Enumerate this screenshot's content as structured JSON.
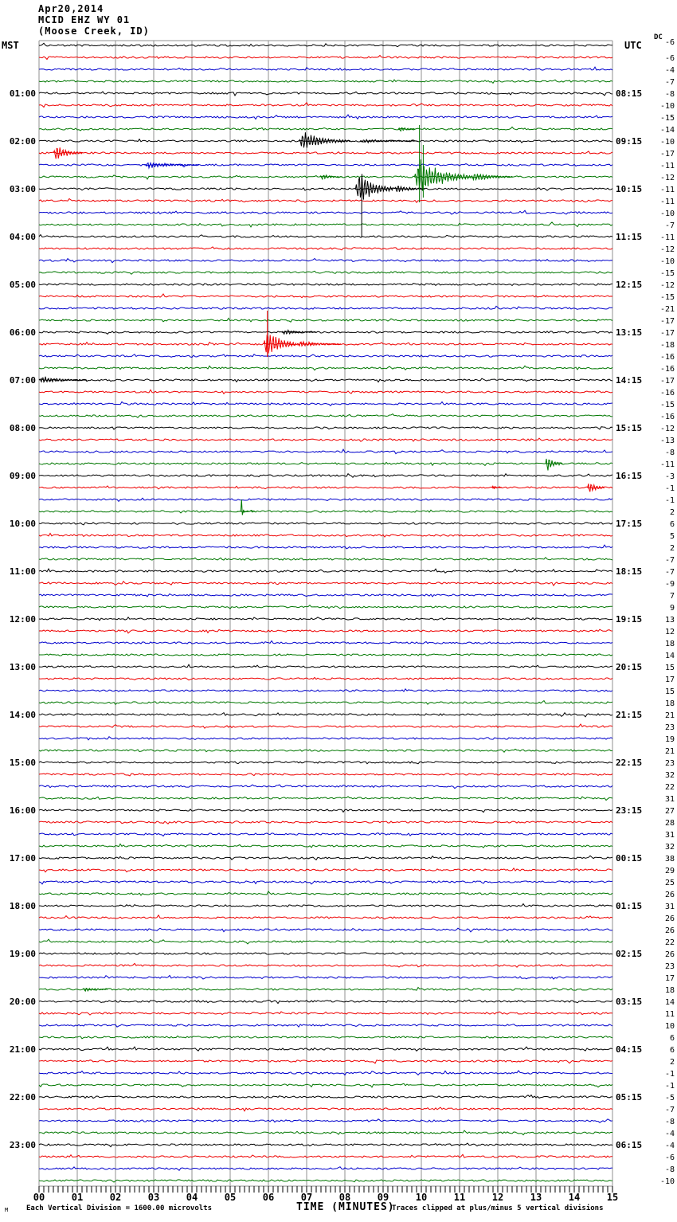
{
  "title": {
    "date": "Apr20,2014",
    "station": "MCID EHZ WY 01",
    "location": "(Moose Creek, ID)"
  },
  "axes": {
    "left_header": "MST",
    "right_header": "UTC",
    "dc_header": "DC",
    "x_axis_title": "TIME (MINUTES)",
    "x_ticks": [
      "00",
      "01",
      "02",
      "03",
      "04",
      "05",
      "06",
      "07",
      "08",
      "09",
      "10",
      "11",
      "12",
      "13",
      "14",
      "15"
    ]
  },
  "footer": {
    "watermark": "M",
    "left": "Each Vertical Division = 1600.00 microvolts",
    "right": "Traces clipped at plus/minus 5 vertical divisions"
  },
  "chart_data": {
    "type": "line",
    "subtype": "helicorder",
    "minutes_per_line": 15,
    "division_microvolts": "1600.00",
    "clip_divisions": 5,
    "trace_colors": {
      "black": "#000000",
      "red": "#ee0000",
      "blue": "#0000cc",
      "green": "#007700"
    },
    "grid_color": "#909090",
    "color_cycle": [
      "black",
      "red",
      "blue",
      "green"
    ],
    "rows": [
      {
        "dc": -6
      },
      {
        "dc": -6
      },
      {
        "dc": -4
      },
      {
        "dc": -7
      },
      {
        "mst": "01:00",
        "utc": "08:15",
        "dc": -8
      },
      {
        "dc": -10
      },
      {
        "dc": -15
      },
      {
        "dc": -14
      },
      {
        "mst": "02:00",
        "utc": "09:15",
        "dc": -10
      },
      {
        "dc": -17
      },
      {
        "dc": -11
      },
      {
        "dc": -12
      },
      {
        "mst": "03:00",
        "utc": "10:15",
        "dc": -11
      },
      {
        "dc": -11
      },
      {
        "dc": -10
      },
      {
        "dc": -7
      },
      {
        "mst": "04:00",
        "utc": "11:15",
        "dc": -11
      },
      {
        "dc": -12
      },
      {
        "dc": -10
      },
      {
        "dc": -15
      },
      {
        "mst": "05:00",
        "utc": "12:15",
        "dc": -12
      },
      {
        "dc": -15
      },
      {
        "dc": -21
      },
      {
        "dc": -17
      },
      {
        "mst": "06:00",
        "utc": "13:15",
        "dc": -17
      },
      {
        "dc": -18
      },
      {
        "dc": -16
      },
      {
        "dc": -16
      },
      {
        "mst": "07:00",
        "utc": "14:15",
        "dc": -17
      },
      {
        "dc": -16
      },
      {
        "dc": -15
      },
      {
        "dc": -16
      },
      {
        "mst": "08:00",
        "utc": "15:15",
        "dc": -12
      },
      {
        "dc": -13
      },
      {
        "dc": -8
      },
      {
        "dc": -11
      },
      {
        "mst": "09:00",
        "utc": "16:15",
        "dc": -3
      },
      {
        "dc": -1
      },
      {
        "dc": -1
      },
      {
        "dc": 2
      },
      {
        "mst": "10:00",
        "utc": "17:15",
        "dc": 6
      },
      {
        "dc": 5
      },
      {
        "dc": 2
      },
      {
        "dc": -7
      },
      {
        "mst": "11:00",
        "utc": "18:15",
        "dc": -7
      },
      {
        "dc": -9
      },
      {
        "dc": 7
      },
      {
        "dc": 9
      },
      {
        "mst": "12:00",
        "utc": "19:15",
        "dc": 13
      },
      {
        "dc": 12
      },
      {
        "dc": 18
      },
      {
        "dc": 14
      },
      {
        "mst": "13:00",
        "utc": "20:15",
        "dc": 15
      },
      {
        "dc": 17
      },
      {
        "dc": 15
      },
      {
        "dc": 18
      },
      {
        "mst": "14:00",
        "utc": "21:15",
        "dc": 21
      },
      {
        "dc": 23
      },
      {
        "dc": 19
      },
      {
        "dc": 21
      },
      {
        "mst": "15:00",
        "utc": "22:15",
        "dc": 23
      },
      {
        "dc": 32
      },
      {
        "dc": 22
      },
      {
        "dc": 31
      },
      {
        "mst": "16:00",
        "utc": "23:15",
        "dc": 27
      },
      {
        "dc": 28
      },
      {
        "dc": 31
      },
      {
        "dc": 32
      },
      {
        "mst": "17:00",
        "utc": "00:15",
        "dc": 38
      },
      {
        "dc": 29
      },
      {
        "dc": 25
      },
      {
        "dc": 26
      },
      {
        "mst": "18:00",
        "utc": "01:15",
        "dc": 31
      },
      {
        "dc": 26
      },
      {
        "dc": 26
      },
      {
        "dc": 22
      },
      {
        "mst": "19:00",
        "utc": "02:15",
        "dc": 26
      },
      {
        "dc": 23
      },
      {
        "dc": 17
      },
      {
        "dc": 18
      },
      {
        "mst": "20:00",
        "utc": "03:15",
        "dc": 14
      },
      {
        "dc": 11
      },
      {
        "dc": 10
      },
      {
        "dc": 6
      },
      {
        "mst": "21:00",
        "utc": "04:15",
        "dc": 6
      },
      {
        "dc": 2
      },
      {
        "dc": -1
      },
      {
        "dc": -1
      },
      {
        "mst": "22:00",
        "utc": "05:15",
        "dc": -5
      },
      {
        "dc": -7
      },
      {
        "dc": -8
      },
      {
        "dc": -4
      },
      {
        "mst": "23:00",
        "utc": "06:15",
        "dc": -4
      },
      {
        "dc": -6
      },
      {
        "dc": -8
      },
      {
        "dc": -10
      }
    ],
    "events": [
      {
        "row": 7,
        "m0": 9.4,
        "m1": 9.85,
        "amp": 4,
        "kind": "burst"
      },
      {
        "row": 8,
        "m0": 6.8,
        "m1": 8.15,
        "amp": 13,
        "kind": "burst"
      },
      {
        "row": 8,
        "m0": 8.4,
        "m1": 9.9,
        "amp": 2.5,
        "kind": "burst"
      },
      {
        "row": 9,
        "m0": 0.38,
        "m1": 1.15,
        "amp": 11,
        "kind": "burst"
      },
      {
        "row": 10,
        "m0": 2.75,
        "m1": 4.2,
        "amp": 4.5,
        "kind": "burst"
      },
      {
        "row": 11,
        "m0": 7.35,
        "m1": 7.95,
        "amp": 4,
        "kind": "burst"
      },
      {
        "row": 11,
        "m0": 9.82,
        "m1": 11.3,
        "amp": 26,
        "kind": "burst"
      },
      {
        "row": 11,
        "m0": 11.3,
        "m1": 12.4,
        "amp": 7,
        "kind": "burst"
      },
      {
        "row": 12,
        "m0": 8.28,
        "m1": 9.3,
        "amp": 24,
        "kind": "burst"
      },
      {
        "row": 12,
        "m0": 9.3,
        "m1": 10.1,
        "amp": 6,
        "kind": "burst"
      },
      {
        "row": 24,
        "m0": 6.35,
        "m1": 7.25,
        "amp": 3.5,
        "kind": "burst"
      },
      {
        "row": 25,
        "m0": 5.88,
        "m1": 6.75,
        "amp": 22,
        "kind": "burst"
      },
      {
        "row": 25,
        "m0": 6.75,
        "m1": 7.9,
        "amp": 5,
        "kind": "burst"
      },
      {
        "row": 28,
        "m0": 0.0,
        "m1": 1.25,
        "amp": 5,
        "kind": "burst"
      },
      {
        "row": 35,
        "m0": 13.25,
        "m1": 13.7,
        "amp": 12,
        "kind": "burst"
      },
      {
        "row": 37,
        "m0": 11.85,
        "m1": 12.1,
        "amp": 3,
        "kind": "burst"
      },
      {
        "row": 37,
        "m0": 14.35,
        "m1": 14.8,
        "amp": 10,
        "kind": "burst"
      },
      {
        "row": 39,
        "m0": 5.18,
        "m1": 5.65,
        "amp": 15,
        "kind": "spike"
      },
      {
        "row": 79,
        "m0": 1.15,
        "m1": 1.8,
        "amp": 3.5,
        "kind": "burst"
      }
    ],
    "clip_lines": [
      {
        "row": 11,
        "m": 9.95,
        "up": 65,
        "down": 32
      },
      {
        "row": 11,
        "m": 10.05,
        "up": 40,
        "down": 26
      },
      {
        "row": 12,
        "m": 8.44,
        "up": 14,
        "down": 60
      },
      {
        "row": 25,
        "m": 5.97,
        "up": 42,
        "down": 16
      }
    ]
  }
}
